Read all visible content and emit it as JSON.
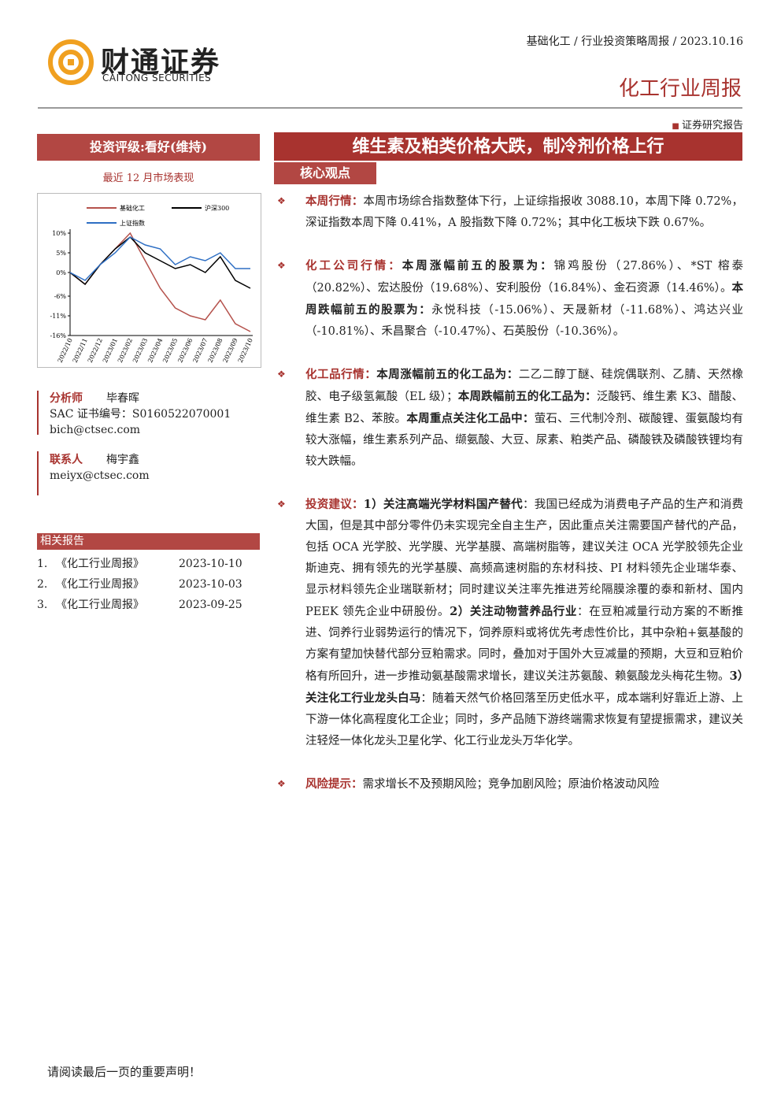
{
  "header": {
    "logo_cn": "财通证券",
    "logo_en": "CAITONG SECURITIES",
    "breadcrumb": "基础化工 / 行业投资策略周报 / 2023.10.16",
    "report_type": "化工行业周报",
    "doc_type": "证券研究报告"
  },
  "rating": "投资评级:看好(维持)",
  "title": "维生素及粕类价格大跌，制冷剂价格上行",
  "section_label": "核心观点",
  "chart_caption": "最近 12 月市场表现",
  "chart": {
    "type": "line",
    "categories": [
      "2022/10",
      "2022/11",
      "2022/12",
      "2023/01",
      "2023/02",
      "2023/03",
      "2023/04",
      "2023/05",
      "2023/06",
      "2023/07",
      "2023/08",
      "2023/09",
      "2023/10"
    ],
    "series": [
      {
        "name": "基础化工",
        "color": "#b5524c",
        "values": [
          0,
          -3,
          2,
          6,
          10,
          3,
          -4,
          -9,
          -11,
          -12,
          -7,
          -13,
          -15
        ]
      },
      {
        "name": "沪深300",
        "color": "#000000",
        "values": [
          0,
          -3,
          2,
          6,
          9,
          5,
          3,
          1,
          2,
          0,
          4,
          -2,
          -4
        ]
      },
      {
        "name": "上证指数",
        "color": "#2e6fc4",
        "values": [
          0,
          -2,
          2,
          5,
          9,
          7,
          6,
          2,
          4,
          3,
          5,
          1,
          1
        ]
      }
    ],
    "ylim": [
      -16,
      10
    ],
    "yticks": [
      {
        "value": 10,
        "label": "10%"
      },
      {
        "value": 5,
        "label": "5%"
      },
      {
        "value": 0,
        "label": "0%"
      },
      {
        "value": -6,
        "label": "-6%"
      },
      {
        "value": -11,
        "label": "-11%"
      },
      {
        "value": -16,
        "label": "-16%"
      }
    ]
  },
  "analyst": {
    "role": "分析师",
    "name": "毕春晖",
    "sac": "SAC 证书编号：S0160522070001",
    "email": "bich@ctsec.com"
  },
  "contact": {
    "role": "联系人",
    "name": "梅宇鑫",
    "email": "meiyx@ctsec.com"
  },
  "related": {
    "title": "相关报告",
    "items": [
      {
        "index": "1.",
        "name": "《化工行业周报》",
        "date": "2023-10-10"
      },
      {
        "index": "2.",
        "name": "《化工行业周报》",
        "date": "2023-10-03"
      },
      {
        "index": "3.",
        "name": "《化工行业周报》",
        "date": "2023-09-25"
      }
    ]
  },
  "items": [
    {
      "heading": "本周行情：",
      "runs": [
        {
          "t": "本周市场综合指数整体下行，上证综指报收 3088.10，本周下降 0.72%，深证指数本周下降 0.41%，A 股指数下降 0.72%；其中化工板块下跌 0.67%。",
          "b": false
        }
      ]
    },
    {
      "heading": "化工公司行情：",
      "runs": [
        {
          "t": "本周涨幅前五的股票为：",
          "b": true
        },
        {
          "t": "锦鸡股份（27.86%）、*ST 榕泰（20.82%）、宏达股份（19.68%）、安利股份（16.84%）、金石资源（14.46%）。",
          "b": false
        },
        {
          "t": "本周跌幅前五的股票为：",
          "b": true
        },
        {
          "t": "永悦科技（-15.06%）、天晟新材（-11.68%）、鸿达兴业（-10.81%）、禾昌聚合（-10.47%）、石英股份（-10.36%）。",
          "b": false
        }
      ]
    },
    {
      "heading": "化工品行情：",
      "runs": [
        {
          "t": "本周涨幅前五的化工品为：",
          "b": true
        },
        {
          "t": "二乙二醇丁醚、硅烷偶联剂、乙腈、天然橡胶、电子级氢氟酸（EL 级）；",
          "b": false
        },
        {
          "t": "本周跌幅前五的化工品为：",
          "b": true
        },
        {
          "t": "泛酸钙、维生素 K3、醋酸、维生素 B2、苯胺。",
          "b": false
        },
        {
          "t": "本周重点关注化工品中：",
          "b": true
        },
        {
          "t": "萤石、三代制冷剂、碳酸锂、蛋氨酸均有较大涨幅，维生素系列产品、缬氨酸、大豆、尿素、粕类产品、磷酸铁及磷酸铁锂均有较大跌幅。",
          "b": false
        }
      ]
    },
    {
      "heading": "投资建议：",
      "runs": [
        {
          "t": "1）关注高端光学材料国产替代",
          "b": true
        },
        {
          "t": "：我国已经成为消费电子产品的生产和消费大国，但是其中部分零件仍未实现完全自主生产，因此重点关注需要国产替代的产品，包括 OCA 光学胶、光学膜、光学基膜、高端树脂等，建议关注 OCA 光学胶领先企业斯迪克、拥有领先的光学基膜、高频高速树脂的东材科技、PI 材料领先企业瑞华泰、显示材料领先企业瑞联新材；同时建议关注率先推进芳纶隔膜涂覆的泰和新材、国内 PEEK 领先企业中研股份。",
          "b": false
        },
        {
          "t": "2）关注动物营养品行业",
          "b": true
        },
        {
          "t": "：在豆粕减量行动方案的不断推进、饲养行业弱势运行的情况下，饲养原料或将优先考虑性价比，其中杂粕+氨基酸的方案有望加快替代部分豆粕需求。同时，叠加对于国外大豆减量的预期，大豆和豆粕价格有所回升，进一步推动氨基酸需求增长，建议关注苏氨酸、赖氨酸龙头梅花生物。",
          "b": false
        },
        {
          "t": "3）关注化工行业龙头白马",
          "b": true
        },
        {
          "t": "：随着天然气价格回落至历史低水平，成本端利好靠近上游、上下游一体化高程度化工企业；同时，多产品随下游终端需求恢复有望提振需求，建议关注轻烃一体化龙头卫星化学、化工行业龙头万华化学。",
          "b": false
        }
      ]
    },
    {
      "heading": "风险提示：",
      "runs": [
        {
          "t": "需求增长不及预期风险；竞争加剧风险；原油价格波动风险",
          "b": false
        }
      ]
    }
  ],
  "footer": "请阅读最后一页的重要声明！"
}
